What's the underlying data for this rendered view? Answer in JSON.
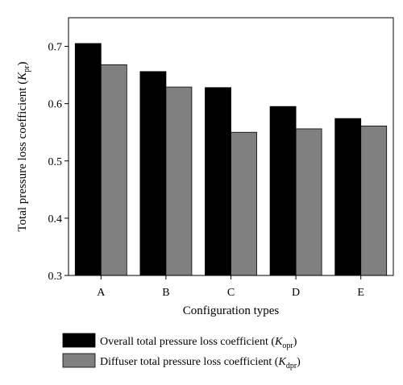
{
  "chart_data": {
    "type": "bar",
    "categories": [
      "A",
      "B",
      "C",
      "D",
      "E"
    ],
    "series": [
      {
        "name": "Overall total pressure loss coefficient (Kopr)",
        "label_main": "Overall total pressure loss coefficient (",
        "label_sym": "K",
        "label_sub": "opr",
        "label_end": ")",
        "color": "#000000",
        "values": [
          0.705,
          0.656,
          0.628,
          0.595,
          0.574
        ]
      },
      {
        "name": "Diffuser total pressure loss coefficient (Kdpr)",
        "label_main": "Diffuser total pressure loss coefficient (",
        "label_sym": "K",
        "label_sub": "dpr",
        "label_end": ")",
        "color": "#808080",
        "values": [
          0.668,
          0.629,
          0.55,
          0.556,
          0.561
        ]
      }
    ],
    "xlabel": "Configuration types",
    "ylabel_main": "Total pressure loss coefficient (",
    "ylabel_sym": "K",
    "ylabel_sub": "pr",
    "ylabel_end": ")",
    "ylim": [
      0.3,
      0.75
    ],
    "yticks": [
      0.3,
      0.4,
      0.5,
      0.6,
      0.7
    ],
    "ytick_labels": [
      "0.3",
      "0.4",
      "0.5",
      "0.6",
      "0.7"
    ],
    "grid": false,
    "legend_position": "bottom"
  }
}
